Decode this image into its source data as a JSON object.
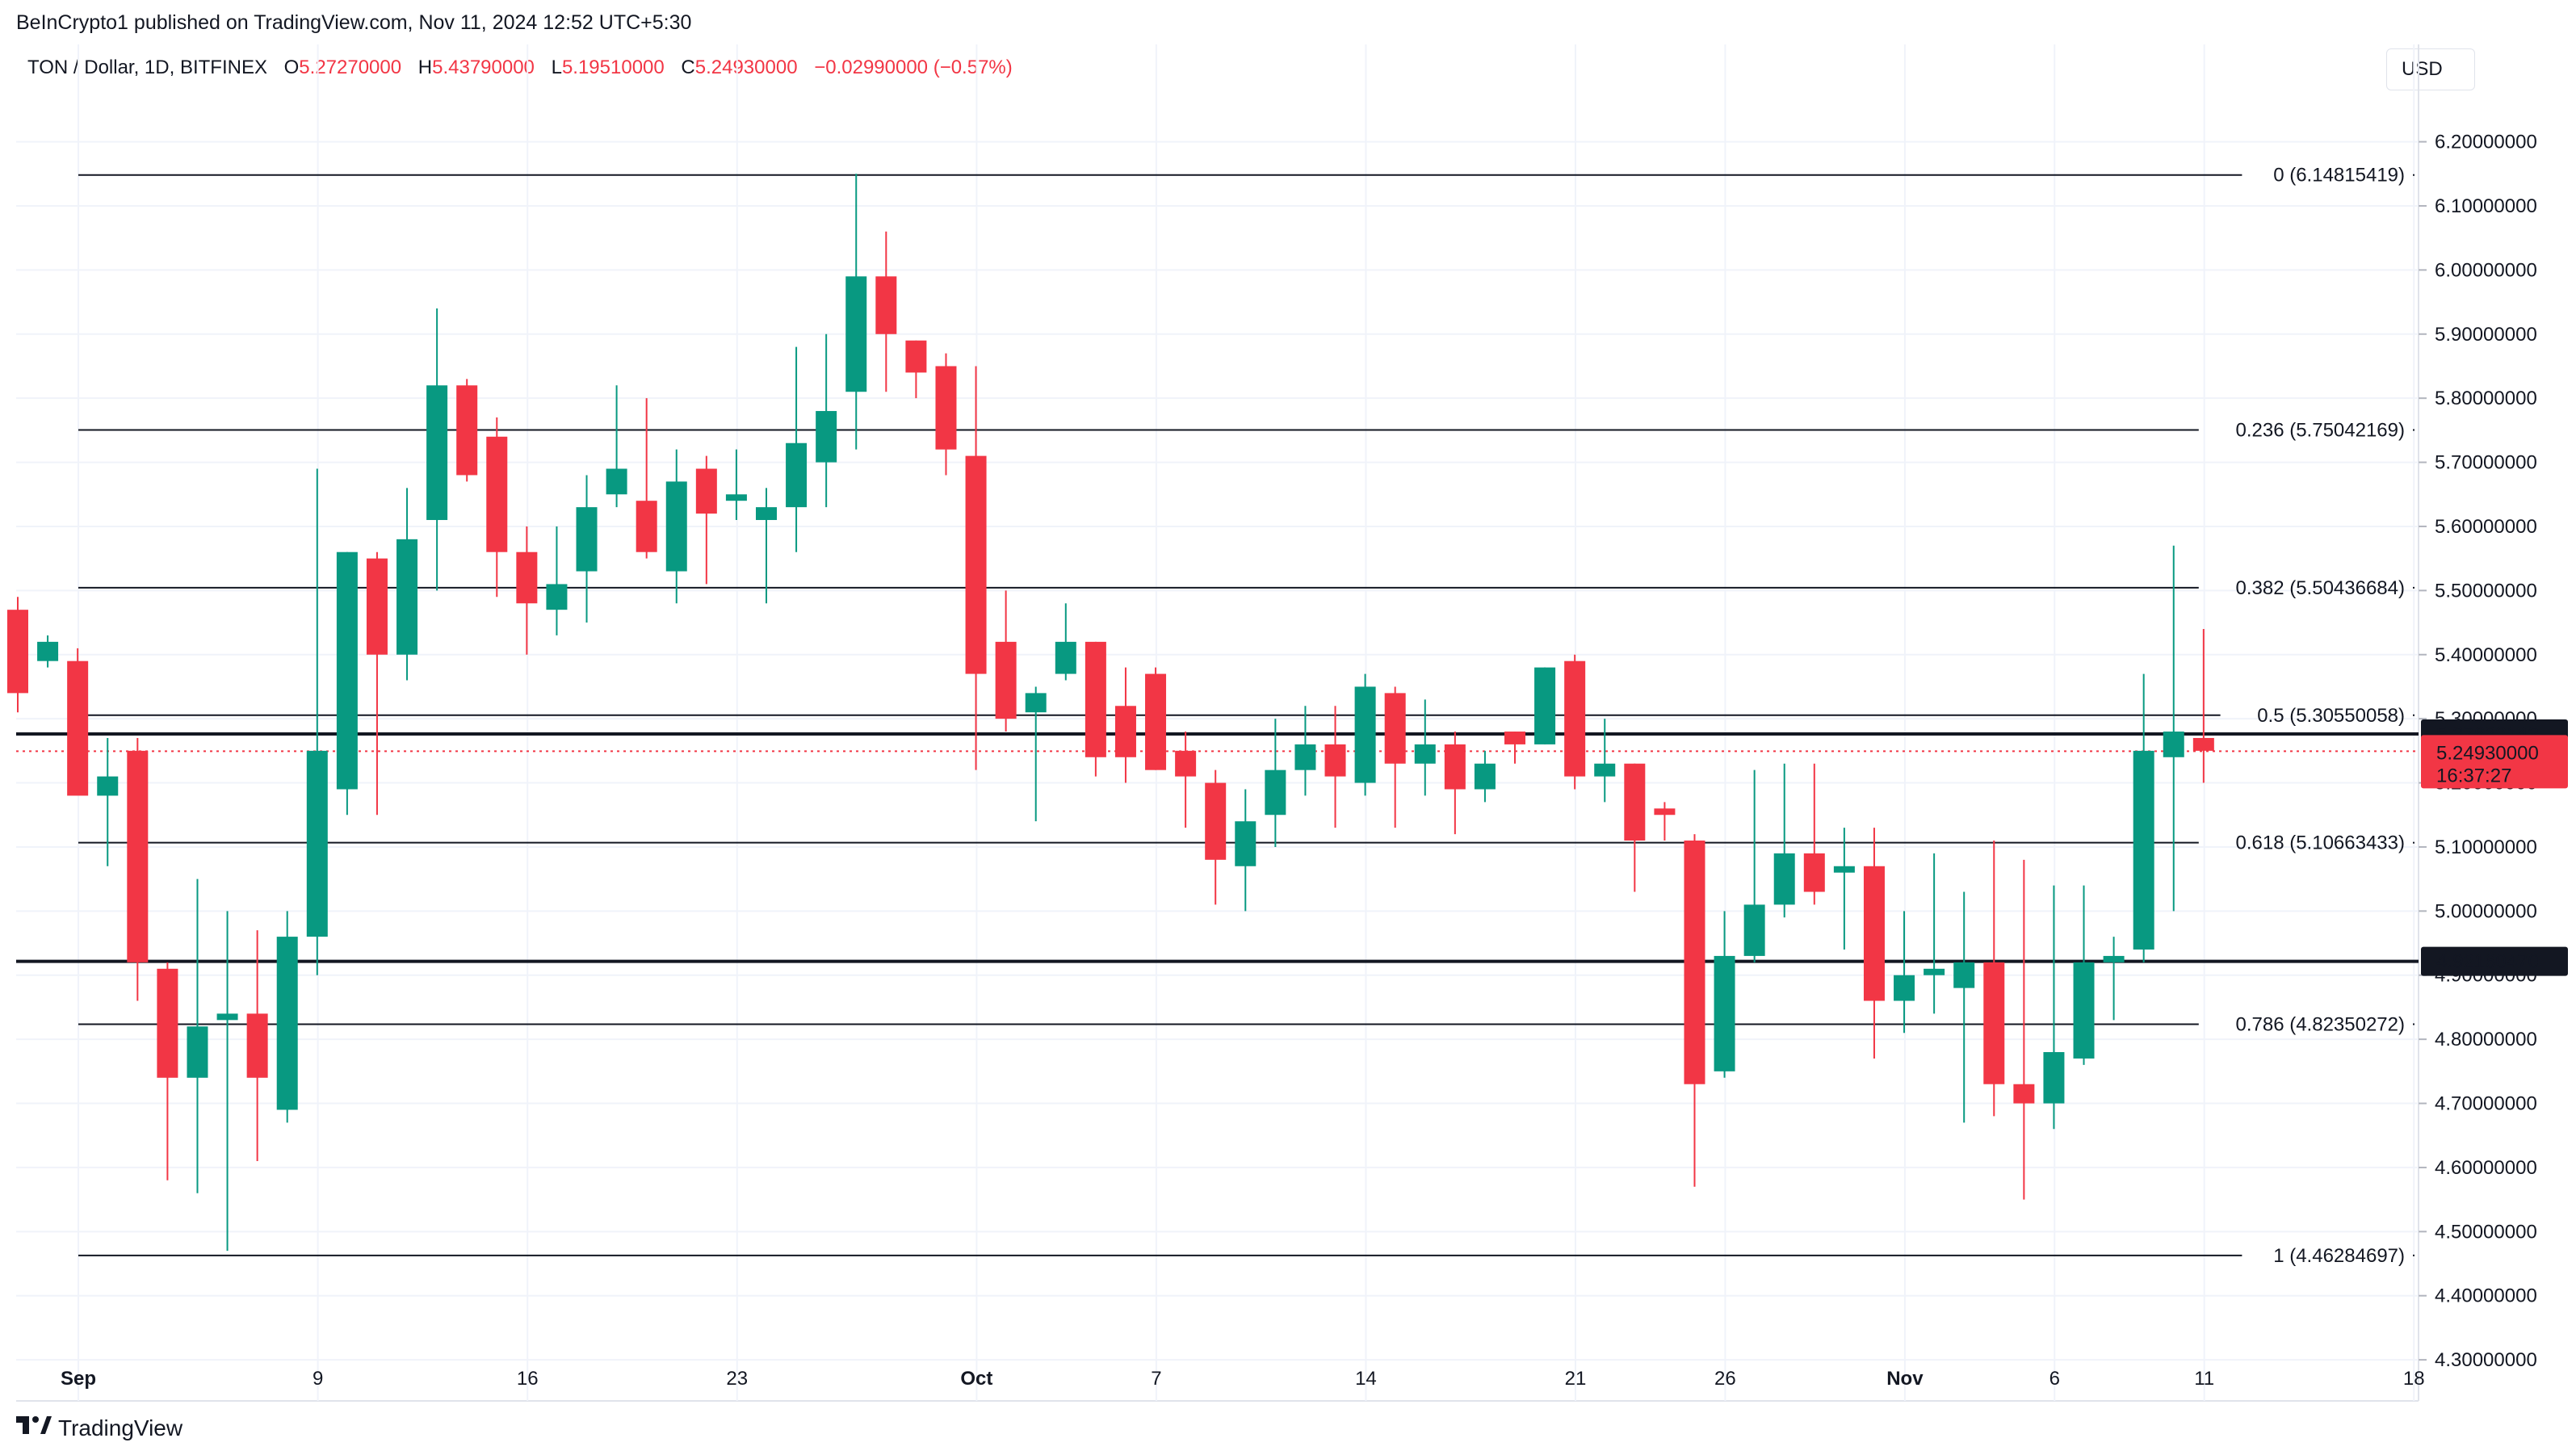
{
  "header": {
    "published": "BeInCrypto1 published on TradingView.com, Nov 11, 2024 12:52 UTC+5:30",
    "symbol": "TON / Dollar, 1D, BITFINEX",
    "open_label": "O",
    "open": "5.27270000",
    "high_label": "H",
    "high": "5.43790000",
    "low_label": "L",
    "low": "5.19510000",
    "close_label": "C",
    "close": "5.24930000",
    "change": "−0.02990000 (−0.57%)"
  },
  "currency": "USD",
  "brand": "TradingView",
  "colors": {
    "up": "#089981",
    "down": "#f23645",
    "grid": "#f0f3fa",
    "line": "#131722"
  },
  "chart_data": {
    "type": "candlestick",
    "y_range": [
      4.28,
      6.27
    ],
    "y_ticks": [
      "6.20000000",
      "6.10000000",
      "6.00000000",
      "5.90000000",
      "5.80000000",
      "5.70000000",
      "5.60000000",
      "5.50000000",
      "5.40000000",
      "5.30000000",
      "5.20000000",
      "5.10000000",
      "5.00000000",
      "4.90000000",
      "4.80000000",
      "4.70000000",
      "4.60000000",
      "4.50000000",
      "4.40000000",
      "4.30000000"
    ],
    "x_labels": [
      {
        "label": "Sep",
        "day": 0,
        "bold": true
      },
      {
        "label": "9",
        "day": 8
      },
      {
        "label": "16",
        "day": 15
      },
      {
        "label": "23",
        "day": 22
      },
      {
        "label": "Oct",
        "day": 30,
        "bold": true
      },
      {
        "label": "7",
        "day": 36
      },
      {
        "label": "14",
        "day": 43
      },
      {
        "label": "21",
        "day": 50
      },
      {
        "label": "26",
        "day": 55
      },
      {
        "label": "Nov",
        "day": 61,
        "bold": true
      },
      {
        "label": "6",
        "day": 66
      },
      {
        "label": "11",
        "day": 71
      },
      {
        "label": "18",
        "day": 78
      }
    ],
    "candles": [
      [
        5.47,
        5.34,
        5.49,
        5.31
      ],
      [
        5.39,
        5.42,
        5.43,
        5.38
      ],
      [
        5.39,
        5.18,
        5.41,
        5.22
      ],
      [
        5.18,
        5.21,
        5.27,
        5.07
      ],
      [
        5.25,
        4.92,
        5.27,
        4.86
      ],
      [
        4.91,
        4.74,
        4.92,
        4.58
      ],
      [
        4.74,
        4.82,
        5.05,
        4.56
      ],
      [
        4.83,
        4.84,
        5.0,
        4.47
      ],
      [
        4.84,
        4.74,
        4.97,
        4.61
      ],
      [
        4.69,
        4.96,
        5.0,
        4.67
      ],
      [
        4.96,
        5.25,
        5.69,
        4.9
      ],
      [
        5.19,
        5.56,
        5.56,
        5.15
      ],
      [
        5.55,
        5.4,
        5.56,
        5.15
      ],
      [
        5.4,
        5.58,
        5.66,
        5.36
      ],
      [
        5.61,
        5.82,
        5.94,
        5.5
      ],
      [
        5.82,
        5.68,
        5.83,
        5.67
      ],
      [
        5.74,
        5.56,
        5.77,
        5.49
      ],
      [
        5.56,
        5.48,
        5.6,
        5.4
      ],
      [
        5.47,
        5.51,
        5.6,
        5.43
      ],
      [
        5.53,
        5.63,
        5.68,
        5.45
      ],
      [
        5.65,
        5.69,
        5.82,
        5.63
      ],
      [
        5.64,
        5.56,
        5.8,
        5.55
      ],
      [
        5.53,
        5.67,
        5.72,
        5.48
      ],
      [
        5.69,
        5.62,
        5.71,
        5.51
      ],
      [
        5.64,
        5.65,
        5.72,
        5.61
      ],
      [
        5.61,
        5.63,
        5.66,
        5.48
      ],
      [
        5.63,
        5.73,
        5.88,
        5.56
      ],
      [
        5.7,
        5.78,
        5.9,
        5.63
      ],
      [
        5.81,
        5.99,
        6.15,
        5.72
      ],
      [
        5.99,
        5.9,
        6.06,
        5.81
      ],
      [
        5.89,
        5.84,
        5.89,
        5.8
      ],
      [
        5.85,
        5.72,
        5.87,
        5.68
      ],
      [
        5.71,
        5.37,
        5.85,
        5.22
      ],
      [
        5.42,
        5.3,
        5.5,
        5.28
      ],
      [
        5.31,
        5.34,
        5.35,
        5.14
      ],
      [
        5.37,
        5.42,
        5.48,
        5.36
      ],
      [
        5.42,
        5.24,
        5.42,
        5.21
      ],
      [
        5.32,
        5.24,
        5.38,
        5.2
      ],
      [
        5.37,
        5.22,
        5.38,
        5.22
      ],
      [
        5.25,
        5.21,
        5.28,
        5.13
      ],
      [
        5.2,
        5.08,
        5.22,
        5.01
      ],
      [
        5.07,
        5.14,
        5.19,
        5.0
      ],
      [
        5.15,
        5.22,
        5.3,
        5.1
      ],
      [
        5.22,
        5.26,
        5.32,
        5.18
      ],
      [
        5.26,
        5.21,
        5.32,
        5.13
      ],
      [
        5.2,
        5.35,
        5.37,
        5.18
      ],
      [
        5.34,
        5.23,
        5.35,
        5.13
      ],
      [
        5.23,
        5.26,
        5.33,
        5.18
      ],
      [
        5.26,
        5.19,
        5.28,
        5.12
      ],
      [
        5.19,
        5.23,
        5.25,
        5.17
      ],
      [
        5.28,
        5.26,
        5.28,
        5.23
      ],
      [
        5.26,
        5.38,
        5.38,
        5.26
      ],
      [
        5.39,
        5.21,
        5.4,
        5.19
      ],
      [
        5.21,
        5.23,
        5.3,
        5.17
      ],
      [
        5.23,
        5.11,
        5.23,
        5.03
      ],
      [
        5.16,
        5.15,
        5.17,
        5.11
      ],
      [
        5.11,
        4.73,
        5.12,
        4.57
      ],
      [
        4.75,
        4.93,
        5.0,
        4.74
      ],
      [
        4.93,
        5.01,
        5.22,
        4.92
      ],
      [
        5.01,
        5.09,
        5.23,
        4.99
      ],
      [
        5.09,
        5.03,
        5.23,
        5.01
      ],
      [
        5.06,
        5.07,
        5.13,
        4.94
      ],
      [
        5.07,
        4.86,
        5.13,
        4.77
      ],
      [
        4.86,
        4.9,
        5.0,
        4.81
      ],
      [
        4.9,
        4.91,
        5.09,
        4.84
      ],
      [
        4.88,
        4.92,
        5.03,
        4.67
      ],
      [
        4.92,
        4.73,
        5.11,
        4.68
      ],
      [
        4.73,
        4.7,
        5.08,
        4.55
      ],
      [
        4.7,
        4.78,
        5.04,
        4.66
      ],
      [
        4.77,
        4.92,
        5.04,
        4.76
      ],
      [
        4.92,
        4.93,
        4.96,
        4.83
      ],
      [
        4.94,
        5.25,
        5.37,
        4.92
      ],
      [
        5.24,
        5.28,
        5.57,
        5.0
      ],
      [
        5.27,
        5.25,
        5.44,
        5.2
      ]
    ],
    "fib_levels": [
      {
        "label": "0 (6.14815419)",
        "value": 6.14815419
      },
      {
        "label": "0.236 (5.75042169)",
        "value": 5.75042169
      },
      {
        "label": "0.382 (5.50436684)",
        "value": 5.50436684
      },
      {
        "label": "0.5 (5.30550058)",
        "value": 5.30550058
      },
      {
        "label": "0.618 (5.10663433)",
        "value": 5.10663433
      },
      {
        "label": "0.786 (4.82350272)",
        "value": 4.82350272
      },
      {
        "label": "1 (4.46284697)",
        "value": 4.46284697
      }
    ],
    "horizontal_lines": [
      {
        "value": 5.27632142,
        "label": "5.27632142"
      },
      {
        "value": 4.9216047,
        "label": "4.92160470"
      }
    ],
    "current_price": {
      "value": 5.2493,
      "label": "5.24930000",
      "countdown": "16:37:27"
    }
  }
}
